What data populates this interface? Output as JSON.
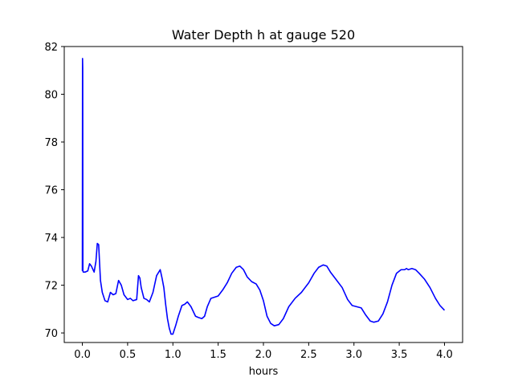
{
  "chart_data": {
    "type": "line",
    "title": "Water Depth h at gauge 520",
    "xlabel": "hours",
    "ylabel": "",
    "xlim": [
      -0.2,
      4.2
    ],
    "ylim": [
      69.6,
      82.0
    ],
    "x_ticks": [
      0.0,
      0.5,
      1.0,
      1.5,
      2.0,
      2.5,
      3.0,
      3.5,
      4.0
    ],
    "x_tick_labels": [
      "0.0",
      "0.5",
      "1.0",
      "1.5",
      "2.0",
      "2.5",
      "3.0",
      "3.5",
      "4.0"
    ],
    "y_ticks": [
      70,
      72,
      74,
      76,
      78,
      80,
      82
    ],
    "y_tick_labels": [
      "70",
      "72",
      "74",
      "76",
      "78",
      "80",
      "82"
    ],
    "grid": false,
    "series": [
      {
        "color": "#0000ff",
        "x": [
          0.0,
          0.002,
          0.004,
          0.006,
          0.01,
          0.03,
          0.06,
          0.08,
          0.1,
          0.13,
          0.15,
          0.165,
          0.18,
          0.2,
          0.22,
          0.25,
          0.28,
          0.31,
          0.34,
          0.37,
          0.4,
          0.43,
          0.46,
          0.5,
          0.53,
          0.56,
          0.6,
          0.62,
          0.635,
          0.65,
          0.68,
          0.71,
          0.74,
          0.78,
          0.82,
          0.86,
          0.88,
          0.9,
          0.92,
          0.94,
          0.96,
          0.98,
          1.0,
          1.03,
          1.06,
          1.1,
          1.13,
          1.16,
          1.2,
          1.25,
          1.28,
          1.32,
          1.35,
          1.38,
          1.42,
          1.46,
          1.5,
          1.55,
          1.6,
          1.65,
          1.7,
          1.74,
          1.78,
          1.82,
          1.87,
          1.92,
          1.96,
          2.0,
          2.04,
          2.08,
          2.12,
          2.17,
          2.22,
          2.28,
          2.35,
          2.42,
          2.5,
          2.56,
          2.61,
          2.66,
          2.7,
          2.74,
          2.8,
          2.87,
          2.93,
          2.98,
          3.03,
          3.08,
          3.13,
          3.18,
          3.22,
          3.27,
          3.32,
          3.37,
          3.42,
          3.47,
          3.52,
          3.56,
          3.58,
          3.6,
          3.64,
          3.68,
          3.72,
          3.78,
          3.84,
          3.9,
          3.95,
          4.0
        ],
        "values": [
          72.6,
          81.5,
          81.1,
          72.6,
          72.55,
          72.55,
          72.6,
          72.9,
          72.8,
          72.55,
          73.0,
          73.75,
          73.7,
          72.2,
          71.7,
          71.35,
          71.3,
          71.7,
          71.6,
          71.65,
          72.2,
          72.0,
          71.6,
          71.4,
          71.45,
          71.35,
          71.4,
          72.4,
          72.3,
          71.9,
          71.45,
          71.4,
          71.3,
          71.7,
          72.4,
          72.65,
          72.3,
          71.9,
          71.2,
          70.6,
          70.2,
          69.95,
          69.95,
          70.3,
          70.7,
          71.15,
          71.2,
          71.3,
          71.1,
          70.7,
          70.65,
          70.6,
          70.7,
          71.1,
          71.45,
          71.5,
          71.55,
          71.8,
          72.1,
          72.5,
          72.75,
          72.8,
          72.65,
          72.35,
          72.15,
          72.05,
          71.8,
          71.35,
          70.7,
          70.4,
          70.3,
          70.35,
          70.6,
          71.1,
          71.45,
          71.7,
          72.1,
          72.5,
          72.75,
          72.85,
          72.8,
          72.55,
          72.25,
          71.9,
          71.4,
          71.15,
          71.1,
          71.05,
          70.75,
          70.5,
          70.45,
          70.5,
          70.8,
          71.3,
          72.0,
          72.5,
          72.65,
          72.65,
          72.7,
          72.65,
          72.7,
          72.65,
          72.5,
          72.25,
          71.9,
          71.45,
          71.15,
          70.95
        ]
      }
    ]
  }
}
